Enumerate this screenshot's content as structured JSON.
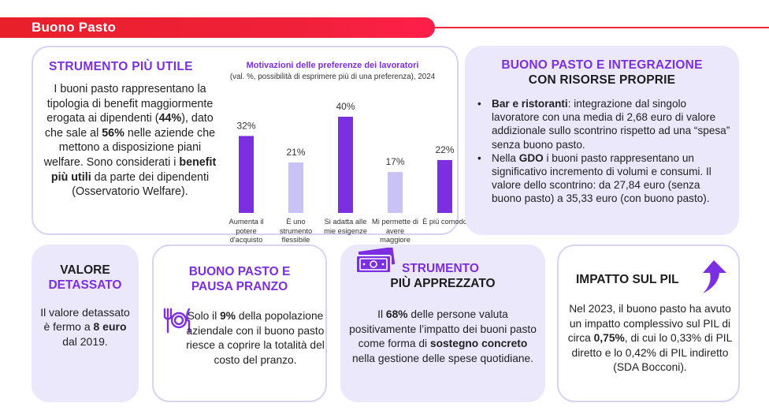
{
  "header": {
    "title": "Buono Pasto"
  },
  "card_utile": {
    "title": "STRUMENTO PIÙ UTILE",
    "text_parts": [
      {
        "t": "I buoni pasto rappresentano la tipologia di benefit maggiormente erogata ai dipendenti (",
        "b": false
      },
      {
        "t": "44%",
        "b": true
      },
      {
        "t": "), dato che sale al ",
        "b": false
      },
      {
        "t": "56%",
        "b": true
      },
      {
        "t": " nelle aziende che mettono a disposizione piani welfare. Sono considerati i ",
        "b": false
      },
      {
        "t": "benefit più utili",
        "b": true
      },
      {
        "t": " da parte dei dipendenti (Osservatorio Welfare).",
        "b": false
      }
    ]
  },
  "chart_data": {
    "type": "bar",
    "title": "Motivazioni delle preferenze dei lavoratori",
    "subtitle": "(val. %, possibilità di esprimere più di una preferenza), 2024",
    "categories": [
      "Aumenta il potere d'acquisto",
      "È uno strumento flessibile",
      "Si adatta alle mie esigenze",
      "Mi permette di avere maggiore scelta",
      "È più comodo"
    ],
    "values": [
      32,
      21,
      40,
      17,
      22
    ],
    "value_labels": [
      "32%",
      "21%",
      "40%",
      "17%",
      "22%"
    ],
    "bar_colors": [
      "#7b2fe0",
      "#c9c3f5",
      "#7b2fe0",
      "#c9c3f5",
      "#7b2fe0"
    ],
    "ylim": [
      0,
      40
    ]
  },
  "card_integrazione": {
    "title_line1": "BUONO PASTO E INTEGRAZIONE",
    "title_line2": "CON RISORSE PROPRIE",
    "bullet_symbol": "•",
    "item1": [
      {
        "t": "Bar e ristoranti",
        "b": true
      },
      {
        "t": ": integrazione dal singolo lavoratore con una media di 2,68 euro di valore addizionale sullo scontrino rispetto ad una “spesa” senza buono pasto.",
        "b": false
      }
    ],
    "item2": [
      {
        "t": "Nella ",
        "b": false
      },
      {
        "t": "GDO",
        "b": true
      },
      {
        "t": " i buoni pasto rappresentano un significativo incremento di volumi e consumi. Il valore dello scontrino: da 27,84 euro (senza buono pasto) a 35,33 euro (con buono pasto).",
        "b": false
      }
    ]
  },
  "card_valore": {
    "title_line1": "VALORE",
    "title_line2": "DETASSATO",
    "text_parts": [
      {
        "t": "Il valore detassato è fermo a ",
        "b": false
      },
      {
        "t": "8 euro",
        "b": true
      },
      {
        "t": " dal 2019.",
        "b": false
      }
    ]
  },
  "card_pausa": {
    "title_line1": "BUONO PASTO E",
    "title_line2": "PAUSA PRANZO",
    "icon": "plate-cutlery-icon",
    "text_parts": [
      {
        "t": "Solo il ",
        "b": false
      },
      {
        "t": "9%",
        "b": true
      },
      {
        "t": " della popolazione aziendale con il buono pasto riesce a coprire la totalità del costo del pranzo.",
        "b": false
      }
    ]
  },
  "card_apprezzato": {
    "title_line1": "STRUMENTO",
    "title_line2": "PIÙ APPREZZATO",
    "icon": "banknote-icon",
    "text_parts": [
      {
        "t": "Il ",
        "b": false
      },
      {
        "t": "68%",
        "b": true
      },
      {
        "t": " delle persone valuta positivamente l’impatto dei buoni pasto come forma di ",
        "b": false
      },
      {
        "t": "sostegno concreto",
        "b": true
      },
      {
        "t": " nella gestione delle spese quotidiane.",
        "b": false
      }
    ]
  },
  "card_pil": {
    "title": "IMPATTO SUL PIL",
    "icon": "growth-arrow-icon",
    "text_parts": [
      {
        "t": "Nel 2023, il buono pasto ha avuto un impatto complessivo sul PIL di circa ",
        "b": false
      },
      {
        "t": "0,75%",
        "b": true
      },
      {
        "t": ", di cui lo 0,33% di PIL diretto e lo 0,42% di PIL indiretto (SDA Bocconi).",
        "b": false
      }
    ]
  },
  "colors": {
    "accent": "#7b2fe0",
    "accent_light": "#c9c3f5",
    "header_red": "#e8202a",
    "card_fill": "#ebe8fb"
  }
}
